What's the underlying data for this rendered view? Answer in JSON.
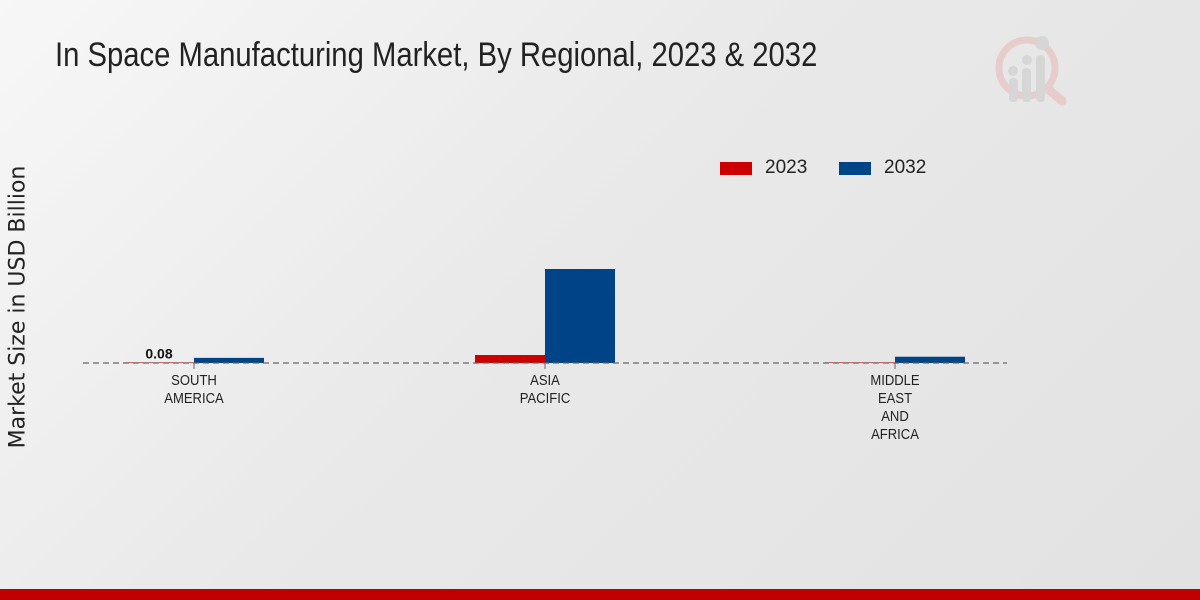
{
  "chart_data": {
    "type": "bar",
    "title": "In Space Manufacturing Market, By Regional, 2023 & 2032",
    "xlabel": "",
    "ylabel": "Market Size in USD Billion",
    "categories": [
      [
        "SOUTH",
        "AMERICA"
      ],
      [
        "ASIA",
        "PACIFIC"
      ],
      [
        "MIDDLE",
        "EAST",
        "AND",
        "AFRICA"
      ]
    ],
    "series": [
      {
        "name": "2023",
        "color": "#cc0000",
        "values": [
          0.08,
          1.4,
          0.05
        ]
      },
      {
        "name": "2032",
        "color": "#004488",
        "values": [
          0.9,
          16.5,
          1.1
        ]
      }
    ],
    "data_labels": [
      {
        "series": "2023",
        "category_index": 0,
        "text": "0.08"
      }
    ],
    "ylim": [
      0,
      20
    ],
    "grid": false,
    "legend_position": "top-right"
  }
}
